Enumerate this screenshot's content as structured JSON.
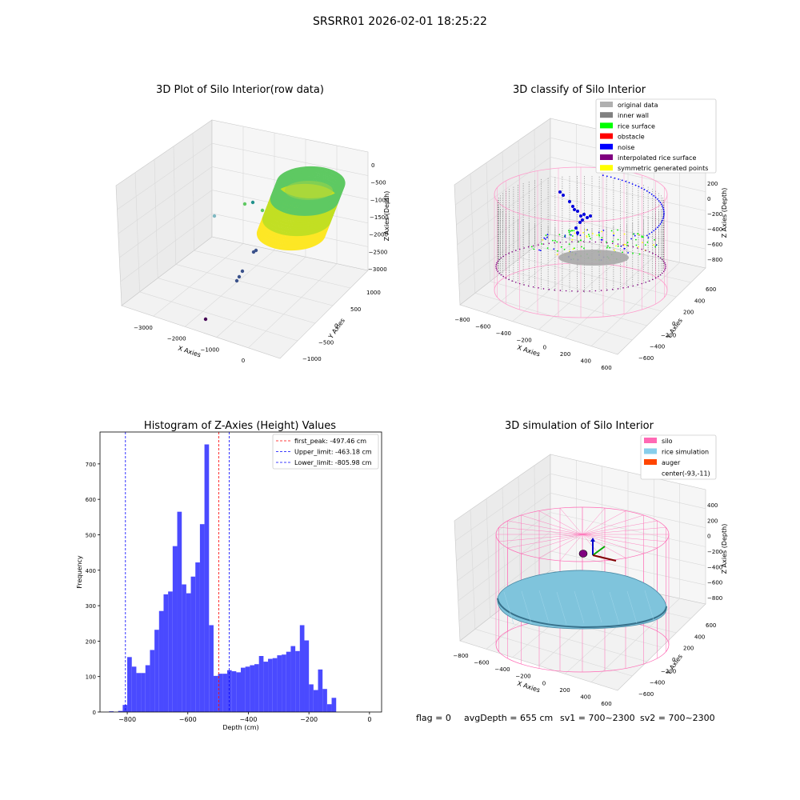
{
  "figure": {
    "suptitle": "SRSRR01 2026-02-01 18:25:22",
    "footer": {
      "flag": "flag = 0",
      "avg_depth": "avgDepth = 655 cm",
      "sv1": "sv1 = 700~2300",
      "sv2": "sv2 = 700~2300"
    }
  },
  "chart_data": [
    {
      "type": "scatter",
      "title": "3D Plot of Silo Interior(row data)",
      "xlabel": "X Axies",
      "ylabel": "Y Axies",
      "zlabel": "Z Axies (Depth)",
      "x_ticks": [
        "−3000",
        "−2000",
        "−1000",
        "0"
      ],
      "y_ticks": [
        "−1000",
        "−500",
        "0",
        "500",
        "1000"
      ],
      "z_ticks": [
        "0",
        "−500",
        "−1000",
        "−1500",
        "−2000",
        "−2500",
        "−3000"
      ],
      "colormap": [
        "#440154",
        "#3b528b",
        "#21918c",
        "#5ec962",
        "#fde725"
      ]
    },
    {
      "type": "scatter",
      "title": "3D classify of Silo Interior",
      "xlabel": "X Axies",
      "ylabel": "Y Axies",
      "zlabel": "Z Axies (Depth)",
      "x_ticks": [
        "−800",
        "−600",
        "−400",
        "−200",
        "0",
        "200",
        "400",
        "600"
      ],
      "y_ticks": [
        "−600",
        "−400",
        "−200",
        "0",
        "200",
        "400",
        "600"
      ],
      "z_ticks": [
        "200",
        "0",
        "−200",
        "−400",
        "−600",
        "−800"
      ],
      "legend": [
        {
          "label": "original data",
          "color": "#b0b0b0"
        },
        {
          "label": "inner wall",
          "color": "#808080"
        },
        {
          "label": "rice surface",
          "color": "#00ff00"
        },
        {
          "label": "obstacle",
          "color": "#ff0000"
        },
        {
          "label": "noise",
          "color": "#0000ff"
        },
        {
          "label": "interpolated rice surface",
          "color": "#800080"
        },
        {
          "label": "symmetric generated points",
          "color": "#ffff00"
        }
      ]
    },
    {
      "type": "bar",
      "title": "Histogram of Z-Axies (Height) Values",
      "xlabel": "Depth (cm)",
      "ylabel": "Frequency",
      "xlim": [
        -890,
        40
      ],
      "ylim": [
        0,
        790
      ],
      "x_ticks": [
        -800,
        -600,
        -400,
        -200,
        0
      ],
      "y_ticks": [
        0,
        100,
        200,
        300,
        400,
        500,
        600,
        700
      ],
      "bin_start": -860,
      "bin_width": 15,
      "values": [
        2,
        0,
        3,
        20,
        155,
        128,
        110,
        110,
        132,
        175,
        232,
        285,
        332,
        340,
        468,
        565,
        360,
        335,
        382,
        422,
        530,
        755,
        245,
        102,
        108,
        108,
        118,
        115,
        112,
        125,
        128,
        132,
        135,
        158,
        142,
        150,
        152,
        160,
        162,
        170,
        186,
        172,
        245,
        202,
        78,
        62,
        120,
        65,
        22,
        40
      ],
      "bar_color": "#4a4aff",
      "vlines": [
        {
          "label": "first_peak: -497.46 cm",
          "x": -497.46,
          "color": "#ff0000"
        },
        {
          "label": "Upper_limit: -463.18 cm",
          "x": -463.18,
          "color": "#0000ff"
        },
        {
          "label": "Lower_limit: -805.98 cm",
          "x": -805.98,
          "color": "#0000ff"
        }
      ]
    },
    {
      "type": "scatter",
      "title": "3D simulation of Silo Interior",
      "xlabel": "X Axies",
      "ylabel": "Y Axies",
      "zlabel": "Z Axies (Depth)",
      "x_ticks": [
        "−800",
        "−600",
        "−400",
        "−200",
        "0",
        "200",
        "400",
        "600"
      ],
      "y_ticks": [
        "−600",
        "−400",
        "−200",
        "0",
        "200",
        "400",
        "600"
      ],
      "z_ticks": [
        "400",
        "200",
        "0",
        "−200",
        "−400",
        "−600",
        "−800"
      ],
      "legend": [
        {
          "label": "silo",
          "color": "#ff69b4"
        },
        {
          "label": "rice simulation",
          "color": "#87ceeb"
        },
        {
          "label": "auger",
          "color": "#ff4500"
        },
        {
          "label": "center(-93,-11)",
          "color": ""
        }
      ]
    }
  ]
}
